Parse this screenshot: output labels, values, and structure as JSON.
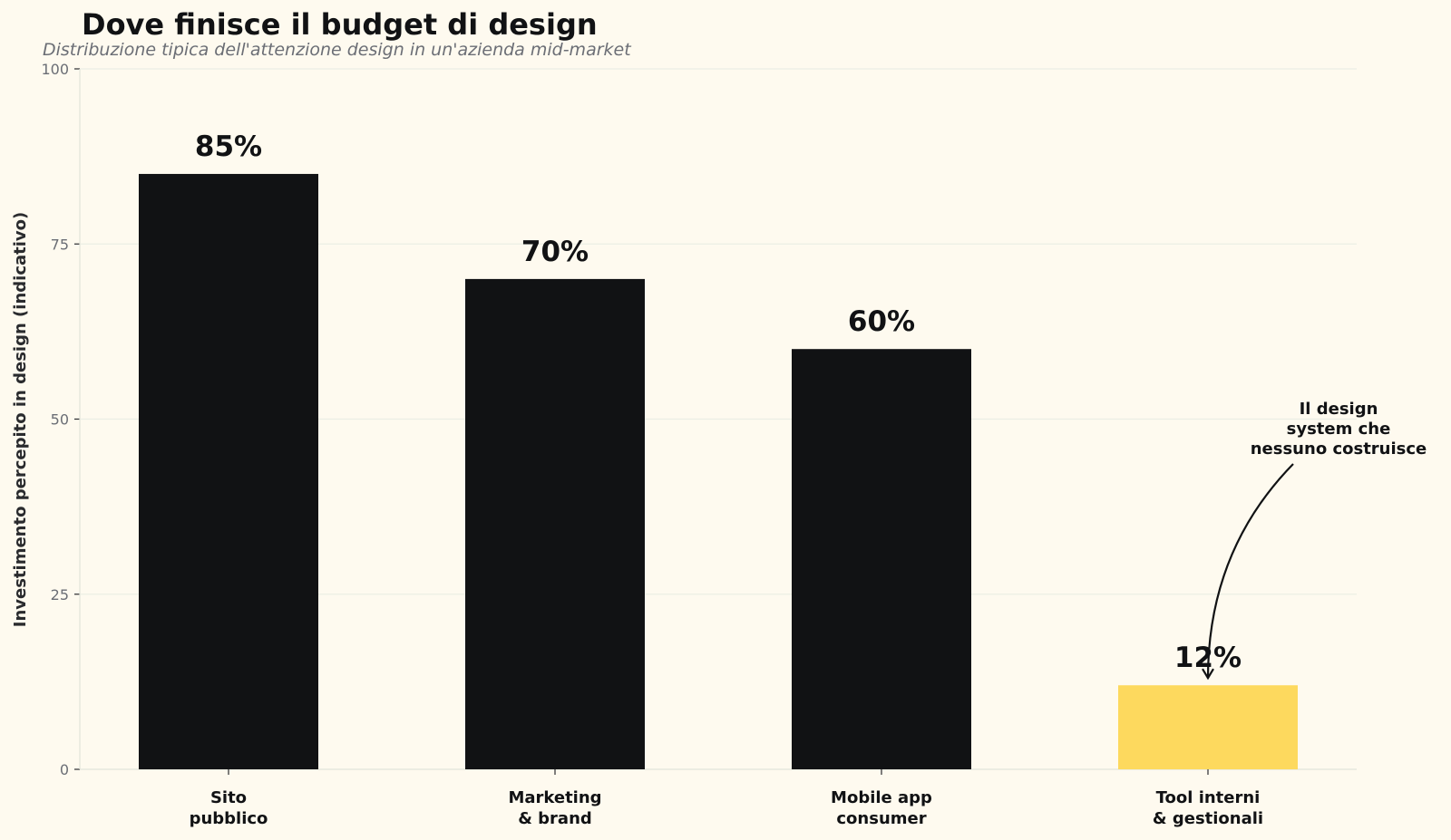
{
  "chart_data": {
    "type": "bar",
    "title": "Dove finisce il budget di design",
    "subtitle": "Distribuzione tipica dell'attenzione design in un'azienda mid-market",
    "xlabel": "",
    "ylabel": "Investimento percepito in design (indicativo)",
    "ylim": [
      0,
      100
    ],
    "yticks": [
      0,
      25,
      50,
      75,
      100
    ],
    "categories": [
      [
        "Sito",
        "pubblico"
      ],
      [
        "Marketing",
        "& brand"
      ],
      [
        "Mobile app",
        "consumer"
      ],
      [
        "Tool interni",
        "& gestionali"
      ]
    ],
    "values": [
      85,
      70,
      60,
      12
    ],
    "data_labels": [
      "85%",
      "70%",
      "60%",
      "12%"
    ],
    "bar_colors": [
      "#111214",
      "#111214",
      "#111214",
      "#fdd95e"
    ],
    "grid": "horizontal",
    "annotation": {
      "text": [
        "Il design",
        "system che",
        "nessuno costruisce"
      ],
      "target_category_index": 3,
      "target_value": 12
    }
  },
  "colors": {
    "background": "#fefaef",
    "bar": "#111214",
    "highlight": "#fdd95e",
    "grid": "#ebeee5",
    "axis": "#e2e4da",
    "muted_text": "#6b6e75"
  }
}
